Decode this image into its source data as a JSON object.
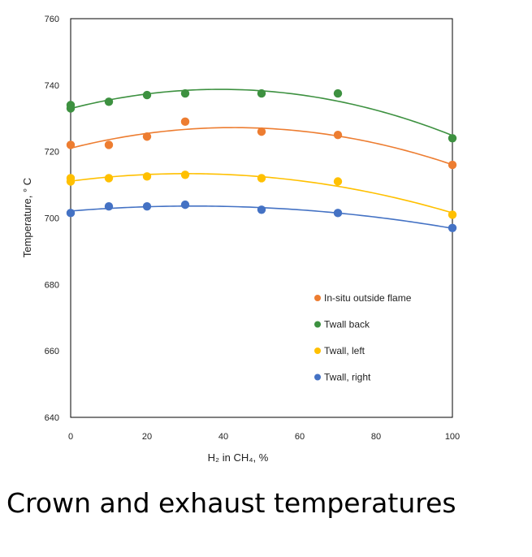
{
  "caption": "Crown and exhaust temperatures",
  "chart_data": {
    "type": "scatter",
    "xlabel": "H₂ in CH₄, %",
    "ylabel": "Temperature, ° C",
    "xlim": [
      0,
      100
    ],
    "ylim": [
      640,
      760
    ],
    "xticks": [
      "0",
      "20",
      "40",
      "60",
      "80",
      "100"
    ],
    "yticks": [
      "640",
      "660",
      "680",
      "700",
      "720",
      "740",
      "760"
    ],
    "grid": false,
    "legend_position": "bottom-right",
    "trendlines": "polynomial",
    "series": [
      {
        "name": "In-situ outside flame",
        "color": "#ed7d31",
        "points": [
          [
            0,
            722
          ],
          [
            10,
            722
          ],
          [
            20,
            724.5
          ],
          [
            30,
            729
          ],
          [
            50,
            726
          ],
          [
            70,
            725
          ],
          [
            100,
            716
          ]
        ]
      },
      {
        "name": "Twall back",
        "color": "#3d9140",
        "points": [
          [
            0,
            733
          ],
          [
            0,
            734
          ],
          [
            10,
            735
          ],
          [
            20,
            737
          ],
          [
            30,
            737.5
          ],
          [
            50,
            737.5
          ],
          [
            70,
            737.5
          ],
          [
            100,
            724
          ]
        ]
      },
      {
        "name": "Twall, left",
        "color": "#ffc000",
        "points": [
          [
            0,
            711
          ],
          [
            0,
            712
          ],
          [
            10,
            712
          ],
          [
            20,
            712.5
          ],
          [
            30,
            713
          ],
          [
            50,
            712
          ],
          [
            70,
            711
          ],
          [
            100,
            701
          ]
        ]
      },
      {
        "name": "Twall, right",
        "color": "#4472c4",
        "points": [
          [
            0,
            701.5
          ],
          [
            10,
            703.5
          ],
          [
            20,
            703.5
          ],
          [
            30,
            704
          ],
          [
            50,
            702.5
          ],
          [
            70,
            701.5
          ],
          [
            100,
            697
          ]
        ]
      }
    ]
  }
}
